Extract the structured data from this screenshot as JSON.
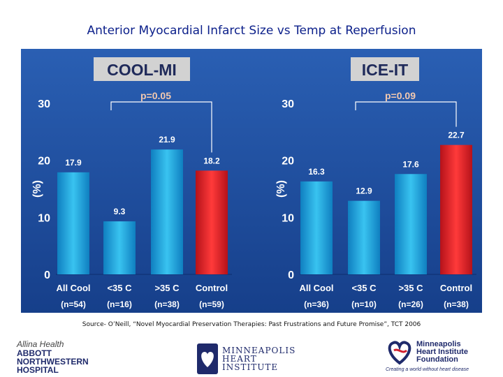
{
  "slide_title": "Anterior Myocardial Infarct Size vs Temp at Reperfusion",
  "source": "Source- O’Neill, “Novel Myocardial Preservation Therapies: Past Frustrations and Future Promise”, TCT 2006",
  "logos": {
    "allina_line1": "Allina Health",
    "allina_line2": "ABBOTT",
    "allina_line3": "NORTHWESTERN",
    "allina_line4": "HOSPITAL",
    "mhi_line1": "MINNEAPOLIS",
    "mhi_line2": "HEART",
    "mhi_line3": "INSTITUTE",
    "mhif_line1": "Minneapolis",
    "mhif_line2": "Heart Institute",
    "mhif_line3": "Foundation",
    "mhif_tagline": "Creating a world without heart disease"
  },
  "colors": {
    "panel_bg": "#1f4fa0",
    "bar_blue": "#1fa6dc",
    "bar_red": "#e21d22",
    "pvalue": "#f2c9b0",
    "label_box": "#d2d2d2"
  },
  "chart_data": [
    {
      "type": "bar",
      "title": "COOL-MI",
      "ylabel": "(%)",
      "ylim": [
        0,
        30
      ],
      "yticks": [
        0,
        10,
        20,
        30
      ],
      "categories": [
        "All Cool",
        "<35 C",
        ">35 C",
        "Control"
      ],
      "sublabels": [
        "(n=54)",
        "(n=16)",
        "(n=38)",
        "(n=59)"
      ],
      "values": [
        17.9,
        9.3,
        21.9,
        18.2
      ],
      "value_labels": [
        "17.9",
        "9.3",
        "21.9",
        "18.2"
      ],
      "pvalue": "p=0.05",
      "bar_colors": [
        "blue",
        "blue",
        "blue",
        "red"
      ]
    },
    {
      "type": "bar",
      "title": "ICE-IT",
      "ylabel": "(%)",
      "ylim": [
        0,
        30
      ],
      "yticks": [
        0,
        10,
        20,
        30
      ],
      "categories": [
        "All Cool",
        "<35 C",
        ">35 C",
        "Control"
      ],
      "sublabels": [
        "(n=36)",
        "(n=10)",
        "(n=26)",
        "(n=38)"
      ],
      "values": [
        16.3,
        12.9,
        17.6,
        22.7
      ],
      "value_labels": [
        "16.3",
        "12.9",
        "17.6",
        "22.7"
      ],
      "pvalue": "p=0.09",
      "bar_colors": [
        "blue",
        "blue",
        "blue",
        "red"
      ]
    }
  ]
}
